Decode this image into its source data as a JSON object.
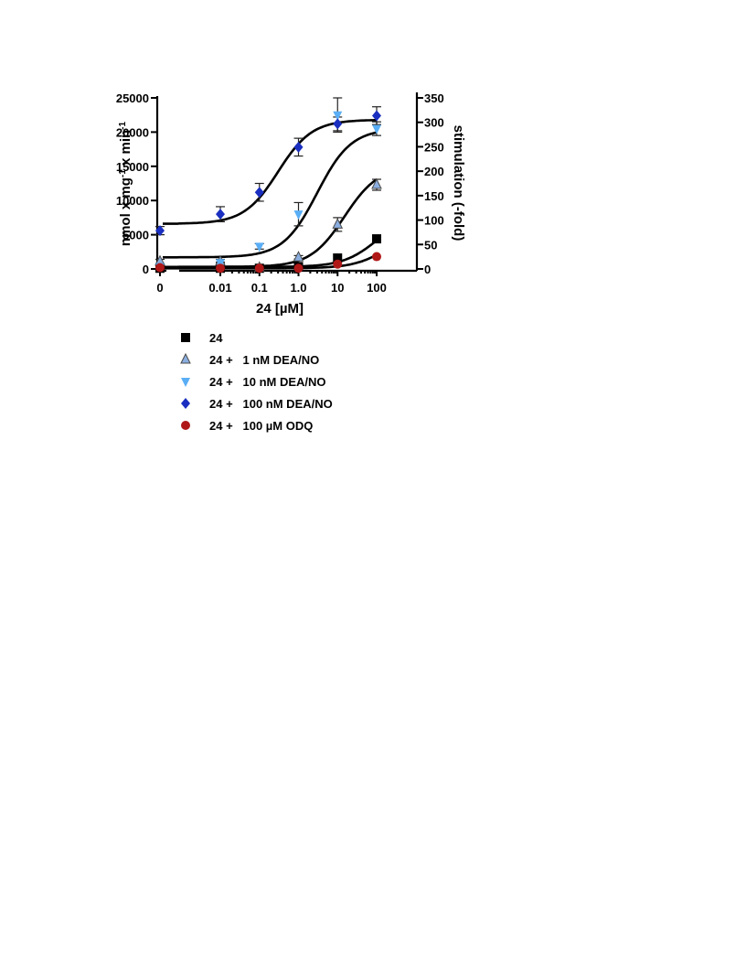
{
  "chart_data": {
    "type": "scatter",
    "xlabel": "24 [µM]",
    "ylabel_left": "nmol x mg-1 x min-1",
    "ylabel_right": "stimulation (-fold)",
    "x_scale": "log",
    "x_ticks": [
      "0",
      "0.01",
      "0.1",
      "1.0",
      "10",
      "100"
    ],
    "x": [
      0,
      0.01,
      0.1,
      1.0,
      10,
      100
    ],
    "ylim_left": [
      0,
      25000
    ],
    "y_ticks_left": [
      "0",
      "5000",
      "10000",
      "15000",
      "20000",
      "25000"
    ],
    "ylim_right": [
      0,
      350
    ],
    "y_ticks_right": [
      "0",
      "50",
      "100",
      "150",
      "200",
      "250",
      "300",
      "350"
    ],
    "grid": false,
    "legend_position": "below",
    "series": [
      {
        "name": "24",
        "marker": "square",
        "color": "#000000",
        "values": [
          100,
          100,
          100,
          350,
          1600,
          4400
        ],
        "errors": [
          0,
          0,
          0,
          0,
          0,
          0
        ]
      },
      {
        "name": "24 +   1 nM DEA/NO",
        "marker": "triangle-up",
        "color": "#8aaee0",
        "values": [
          1100,
          1100,
          200,
          1700,
          6500,
          12300
        ],
        "errors": [
          300,
          300,
          150,
          250,
          1000,
          800
        ]
      },
      {
        "name": "24 +   10 nM DEA/NO",
        "marker": "triangle-down",
        "color": "#5aaef5",
        "values": [
          300,
          900,
          3300,
          8000,
          22500,
          20500
        ],
        "errors": [
          100,
          100,
          400,
          1700,
          2500,
          1000
        ]
      },
      {
        "name": "24 +   100 nM DEA/NO",
        "marker": "diamond",
        "color": "#1a2fc0",
        "values": [
          5600,
          8000,
          11200,
          17800,
          21200,
          22400
        ],
        "errors": [
          600,
          1100,
          1300,
          1300,
          1000,
          1300
        ]
      },
      {
        "name": "24 +   100 µM ODQ",
        "marker": "circle",
        "color": "#b01818",
        "values": [
          200,
          100,
          100,
          100,
          700,
          1800
        ],
        "errors": [
          0,
          0,
          0,
          0,
          0,
          0
        ]
      }
    ],
    "curves": [
      {
        "bottom": 300,
        "top": 8000,
        "ec50": 100,
        "hill": 1
      },
      {
        "bottom": 300,
        "top": 15000,
        "ec50": 15,
        "hill": 1
      },
      {
        "bottom": 1700,
        "top": 20500,
        "ec50": 3,
        "hill": 1
      },
      {
        "bottom": 6600,
        "top": 21800,
        "ec50": 0.3,
        "hill": 1
      },
      {
        "bottom": 100,
        "top": 6000,
        "ec50": 200,
        "hill": 1
      }
    ]
  }
}
